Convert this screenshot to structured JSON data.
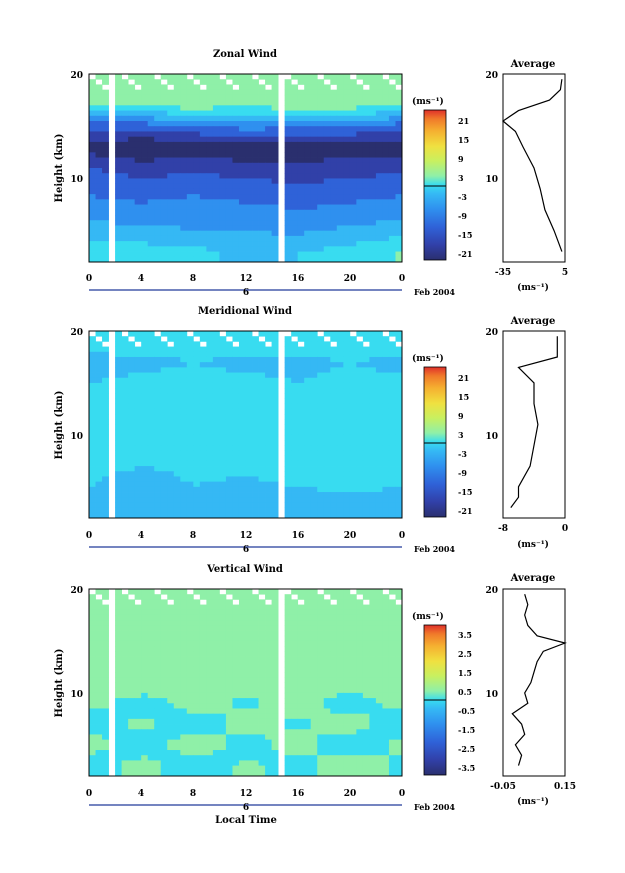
{
  "panels": [
    {
      "title": "Zonal Wind",
      "ylabel": "Height (km)",
      "yticks": [
        "20",
        "10"
      ],
      "xticks": [
        "0",
        "4",
        "8",
        "12",
        "16",
        "20",
        "0"
      ],
      "day_label": "6",
      "date_label": "Feb 2004",
      "cbar": {
        "unit": "(ms⁻¹)",
        "ticks": [
          "21",
          "15",
          "9",
          "3",
          "-3",
          "-9",
          "-15",
          "-21"
        ]
      },
      "avg": {
        "title": "Average",
        "yticks": [
          "20",
          "10"
        ],
        "xticks": [
          "-35",
          "5"
        ],
        "xlabel": "(ms⁻¹)"
      }
    },
    {
      "title": "Meridional Wind",
      "ylabel": "Height (km)",
      "yticks": [
        "20",
        "10"
      ],
      "xticks": [
        "0",
        "4",
        "8",
        "12",
        "16",
        "20",
        "0"
      ],
      "day_label": "6",
      "date_label": "Feb 2004",
      "cbar": {
        "unit": "(ms⁻¹)",
        "ticks": [
          "21",
          "15",
          "9",
          "3",
          "-3",
          "-9",
          "-15",
          "-21"
        ]
      },
      "avg": {
        "title": "Average",
        "yticks": [
          "20",
          "10"
        ],
        "xticks": [
          "-8",
          "0"
        ],
        "xlabel": "(ms⁻¹)"
      }
    },
    {
      "title": "Vertical Wind",
      "ylabel": "Height (km)",
      "yticks": [
        "20",
        "10"
      ],
      "xticks": [
        "0",
        "4",
        "8",
        "12",
        "16",
        "20",
        "0"
      ],
      "day_label": "6",
      "date_label": "Feb 2004",
      "xlabel": "Local Time",
      "cbar": {
        "unit": "(ms⁻¹)",
        "ticks": [
          "3.5",
          "2.5",
          "1.5",
          "0.5",
          "-0.5",
          "-1.5",
          "-2.5",
          "-3.5"
        ]
      },
      "avg": {
        "title": "Average",
        "yticks": [
          "20",
          "10"
        ],
        "xticks": [
          "-0.05",
          "0.15"
        ],
        "xlabel": "(ms⁻¹)"
      }
    }
  ],
  "colors": {
    "scale": [
      "#2a2f6e",
      "#3140a8",
      "#2f62d8",
      "#2f90ef",
      "#35b8f4",
      "#38dcf0",
      "#8ff0a8",
      "#c8f060",
      "#f0e040",
      "#f5b030",
      "#f07a2a",
      "#e0302a"
    ]
  },
  "chart_data": [
    {
      "type": "heatmap",
      "title": "Zonal Wind",
      "xlabel": "",
      "ylabel": "Height (km)",
      "xlim": [
        0,
        24
      ],
      "ylim": [
        2,
        20
      ],
      "clim": [
        -24,
        24
      ],
      "x": [
        0,
        4,
        8,
        12,
        16,
        20,
        24
      ],
      "height_km": [
        3,
        5,
        7,
        9,
        11,
        13,
        15,
        17,
        19
      ],
      "values_approx_ms": [
        [
          -1,
          -2,
          -3,
          -5,
          -4,
          -3,
          0
        ],
        [
          -6,
          -7,
          -8,
          -8,
          -9,
          -7,
          -6
        ],
        [
          -10,
          -11,
          -10,
          -11,
          -12,
          -11,
          -10
        ],
        [
          -13,
          -14,
          -13,
          -14,
          -15,
          -14,
          -13
        ],
        [
          -16,
          -18,
          -17,
          -18,
          -19,
          -18,
          -17
        ],
        [
          -22,
          -24,
          -23,
          -24,
          -23,
          -22,
          -22
        ],
        [
          -15,
          -14,
          -12,
          -10,
          -11,
          -12,
          -14
        ],
        [
          0,
          1,
          2,
          1,
          2,
          2,
          1
        ],
        [
          2,
          3,
          2,
          2,
          3,
          2,
          2
        ]
      ],
      "average_profile": {
        "xlim": [
          -35,
          5
        ],
        "height_km": [
          3,
          5,
          7,
          9,
          11,
          13,
          14.5,
          15.5,
          16.5,
          17.5,
          18.5,
          19.5
        ],
        "values_ms": [
          3,
          -2,
          -8,
          -11,
          -15,
          -22,
          -27,
          -35,
          -25,
          -5,
          2,
          3
        ]
      }
    },
    {
      "type": "heatmap",
      "title": "Meridional Wind",
      "xlabel": "",
      "ylabel": "Height (km)",
      "xlim": [
        0,
        24
      ],
      "ylim": [
        2,
        20
      ],
      "clim": [
        -24,
        24
      ],
      "x": [
        0,
        4,
        8,
        12,
        16,
        20,
        24
      ],
      "height_km": [
        3,
        5,
        7,
        9,
        11,
        13,
        15,
        17,
        19
      ],
      "values_approx_ms": [
        [
          -6,
          -8,
          -7,
          -8,
          -7,
          -6,
          -6
        ],
        [
          -4,
          -6,
          -4,
          -5,
          -4,
          -3,
          -4
        ],
        [
          -3,
          -4,
          -3,
          -3,
          -2,
          -2,
          -3
        ],
        [
          -2,
          -3,
          -3,
          -2,
          -3,
          -2,
          -2
        ],
        [
          -4,
          -4,
          -3,
          -3,
          -4,
          -3,
          -4
        ],
        [
          -3,
          -3,
          -4,
          -4,
          -3,
          -3,
          -3
        ],
        [
          -4,
          -3,
          -3,
          -3,
          -4,
          -3,
          -3
        ],
        [
          -6,
          -5,
          -4,
          -5,
          -5,
          -4,
          -5
        ],
        [
          -2,
          -1,
          -2,
          -1,
          -2,
          -1,
          -2
        ]
      ],
      "average_profile": {
        "xlim": [
          -8,
          0
        ],
        "height_km": [
          3,
          4,
          5,
          7,
          9,
          11,
          13,
          15,
          16.5,
          17.5,
          18.5,
          19.5
        ],
        "values_ms": [
          -7,
          -6,
          -6,
          -4.5,
          -4,
          -3.5,
          -4,
          -4,
          -6,
          -1,
          -1,
          -1
        ]
      }
    },
    {
      "type": "heatmap",
      "title": "Vertical Wind",
      "xlabel": "Local Time",
      "ylabel": "Height (km)",
      "xlim": [
        0,
        24
      ],
      "ylim": [
        2,
        20
      ],
      "clim": [
        -4,
        4
      ],
      "x": [
        0,
        4,
        8,
        12,
        16,
        20,
        24
      ],
      "height_km": [
        3,
        5,
        7,
        9,
        11,
        13,
        15,
        17,
        19
      ],
      "values_approx_ms": [
        [
          -0.3,
          0.2,
          -0.4,
          0.1,
          -0.2,
          0.3,
          -0.1
        ],
        [
          0.2,
          -0.3,
          0.3,
          -0.2,
          0.2,
          -0.3,
          0.1
        ],
        [
          -0.2,
          0.1,
          -0.3,
          0.2,
          -0.1,
          0.2,
          -0.2
        ],
        [
          0.1,
          -0.2,
          0.2,
          -0.1,
          0.2,
          -0.2,
          0.1
        ],
        [
          0.2,
          0.3,
          0.1,
          0.2,
          0.3,
          0.2,
          0.1
        ],
        [
          0.3,
          0.2,
          0.3,
          0.2,
          0.3,
          0.2,
          0.3
        ],
        [
          0.4,
          0.3,
          0.4,
          0.3,
          0.4,
          0.3,
          0.4
        ],
        [
          0.2,
          0.1,
          0.2,
          0.1,
          0.2,
          0.1,
          0.2
        ],
        [
          0.1,
          0.2,
          0.1,
          0.2,
          0.1,
          0.2,
          0.1
        ]
      ],
      "average_profile": {
        "xlim": [
          -0.05,
          0.15
        ],
        "height_km": [
          3,
          4,
          5,
          6,
          7,
          8,
          9,
          10,
          11,
          12,
          13,
          14,
          14.8,
          15.5,
          16.5,
          17.5,
          18.5,
          19.5
        ],
        "values_ms": [
          0.0,
          0.01,
          -0.01,
          0.02,
          0.01,
          -0.02,
          0.03,
          0.02,
          0.04,
          0.05,
          0.06,
          0.08,
          0.15,
          0.06,
          0.03,
          0.02,
          0.03,
          0.02
        ]
      }
    }
  ]
}
